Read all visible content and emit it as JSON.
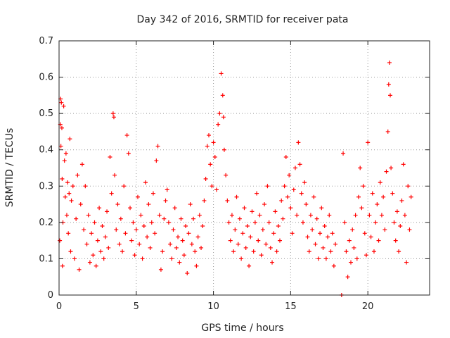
{
  "chart_data": {
    "type": "scatter",
    "title": "Day 342 of 2016, SRMTID for receiver pata",
    "xlabel": "GPS time / hours",
    "ylabel": "SRMTID / TECUs",
    "xlim": [
      0,
      24
    ],
    "ylim": [
      0,
      0.7
    ],
    "x_ticks": [
      0,
      5,
      10,
      15,
      20
    ],
    "y_ticks": [
      0,
      0.1,
      0.2,
      0.3,
      0.4,
      0.5,
      0.6,
      0.7
    ],
    "x_tick_labels": [
      "0",
      "5",
      "10",
      "15",
      "20"
    ],
    "y_tick_labels": [
      "0",
      "0.1",
      "0.2",
      "0.3",
      "0.4",
      "0.5",
      "0.6",
      "0.7"
    ],
    "grid": true,
    "marker": "plus",
    "color": "#ff0000",
    "series": [
      {
        "name": "SRMTID",
        "points": [
          [
            0.05,
            0.15
          ],
          [
            0.08,
            0.47
          ],
          [
            0.1,
            0.54
          ],
          [
            0.12,
            0.41
          ],
          [
            0.15,
            0.53
          ],
          [
            0.18,
            0.46
          ],
          [
            0.2,
            0.32
          ],
          [
            0.22,
            0.08
          ],
          [
            0.25,
            0.2
          ],
          [
            0.3,
            0.52
          ],
          [
            0.35,
            0.37
          ],
          [
            0.4,
            0.27
          ],
          [
            0.45,
            0.39
          ],
          [
            0.5,
            0.22
          ],
          [
            0.55,
            0.31
          ],
          [
            0.6,
            0.17
          ],
          [
            0.65,
            0.28
          ],
          [
            0.7,
            0.43
          ],
          [
            0.75,
            0.12
          ],
          [
            0.8,
            0.26
          ],
          [
            0.9,
            0.3
          ],
          [
            1.0,
            0.1
          ],
          [
            1.1,
            0.21
          ],
          [
            1.2,
            0.33
          ],
          [
            1.3,
            0.07
          ],
          [
            1.4,
            0.25
          ],
          [
            1.5,
            0.36
          ],
          [
            1.6,
            0.18
          ],
          [
            1.7,
            0.3
          ],
          [
            1.8,
            0.14
          ],
          [
            1.9,
            0.22
          ],
          [
            2.0,
            0.09
          ],
          [
            2.1,
            0.17
          ],
          [
            2.2,
            0.11
          ],
          [
            2.3,
            0.2
          ],
          [
            2.4,
            0.08
          ],
          [
            2.5,
            0.15
          ],
          [
            2.6,
            0.24
          ],
          [
            2.7,
            0.12
          ],
          [
            2.8,
            0.19
          ],
          [
            2.9,
            0.1
          ],
          [
            3.0,
            0.16
          ],
          [
            3.1,
            0.23
          ],
          [
            3.2,
            0.13
          ],
          [
            3.3,
            0.38
          ],
          [
            3.4,
            0.28
          ],
          [
            3.5,
            0.5
          ],
          [
            3.55,
            0.49
          ],
          [
            3.6,
            0.33
          ],
          [
            3.7,
            0.18
          ],
          [
            3.8,
            0.25
          ],
          [
            3.9,
            0.14
          ],
          [
            4.0,
            0.21
          ],
          [
            4.1,
            0.12
          ],
          [
            4.2,
            0.3
          ],
          [
            4.3,
            0.17
          ],
          [
            4.4,
            0.44
          ],
          [
            4.5,
            0.39
          ],
          [
            4.6,
            0.24
          ],
          [
            4.7,
            0.15
          ],
          [
            4.8,
            0.2
          ],
          [
            4.9,
            0.11
          ],
          [
            5.0,
            0.18
          ],
          [
            5.1,
            0.27
          ],
          [
            5.2,
            0.14
          ],
          [
            5.3,
            0.22
          ],
          [
            5.4,
            0.1
          ],
          [
            5.5,
            0.19
          ],
          [
            5.6,
            0.31
          ],
          [
            5.7,
            0.16
          ],
          [
            5.8,
            0.25
          ],
          [
            5.9,
            0.13
          ],
          [
            6.0,
            0.2
          ],
          [
            6.1,
            0.28
          ],
          [
            6.2,
            0.17
          ],
          [
            6.3,
            0.37
          ],
          [
            6.4,
            0.41
          ],
          [
            6.5,
            0.22
          ],
          [
            6.6,
            0.07
          ],
          [
            6.7,
            0.12
          ],
          [
            6.8,
            0.21
          ],
          [
            6.9,
            0.26
          ],
          [
            7.0,
            0.29
          ],
          [
            7.1,
            0.2
          ],
          [
            7.2,
            0.14
          ],
          [
            7.3,
            0.1
          ],
          [
            7.4,
            0.18
          ],
          [
            7.5,
            0.24
          ],
          [
            7.6,
            0.13
          ],
          [
            7.7,
            0.16
          ],
          [
            7.8,
            0.09
          ],
          [
            7.9,
            0.21
          ],
          [
            8.0,
            0.15
          ],
          [
            8.1,
            0.11
          ],
          [
            8.2,
            0.19
          ],
          [
            8.3,
            0.06
          ],
          [
            8.4,
            0.17
          ],
          [
            8.5,
            0.25
          ],
          [
            8.6,
            0.14
          ],
          [
            8.7,
            0.21
          ],
          [
            8.8,
            0.12
          ],
          [
            8.9,
            0.08
          ],
          [
            9.0,
            0.16
          ],
          [
            9.1,
            0.22
          ],
          [
            9.2,
            0.13
          ],
          [
            9.3,
            0.19
          ],
          [
            9.4,
            0.26
          ],
          [
            9.5,
            0.32
          ],
          [
            9.6,
            0.41
          ],
          [
            9.7,
            0.44
          ],
          [
            9.8,
            0.36
          ],
          [
            9.9,
            0.3
          ],
          [
            10.0,
            0.42
          ],
          [
            10.1,
            0.38
          ],
          [
            10.2,
            0.29
          ],
          [
            10.3,
            0.47
          ],
          [
            10.4,
            0.5
          ],
          [
            10.5,
            0.61
          ],
          [
            10.6,
            0.55
          ],
          [
            10.65,
            0.49
          ],
          [
            10.7,
            0.4
          ],
          [
            10.8,
            0.33
          ],
          [
            10.9,
            0.26
          ],
          [
            11.0,
            0.2
          ],
          [
            11.1,
            0.15
          ],
          [
            11.2,
            0.22
          ],
          [
            11.3,
            0.12
          ],
          [
            11.4,
            0.18
          ],
          [
            11.5,
            0.27
          ],
          [
            11.6,
            0.14
          ],
          [
            11.7,
            0.21
          ],
          [
            11.8,
            0.1
          ],
          [
            11.9,
            0.17
          ],
          [
            12.0,
            0.24
          ],
          [
            12.1,
            0.13
          ],
          [
            12.2,
            0.19
          ],
          [
            12.3,
            0.08
          ],
          [
            12.4,
            0.16
          ],
          [
            12.5,
            0.23
          ],
          [
            12.6,
            0.12
          ],
          [
            12.7,
            0.2
          ],
          [
            12.8,
            0.28
          ],
          [
            12.9,
            0.15
          ],
          [
            13.0,
            0.22
          ],
          [
            13.1,
            0.11
          ],
          [
            13.2,
            0.18
          ],
          [
            13.3,
            0.25
          ],
          [
            13.4,
            0.14
          ],
          [
            13.5,
            0.3
          ],
          [
            13.6,
            0.2
          ],
          [
            13.7,
            0.13
          ],
          [
            13.8,
            0.09
          ],
          [
            13.9,
            0.17
          ],
          [
            14.0,
            0.23
          ],
          [
            14.1,
            0.12
          ],
          [
            14.2,
            0.19
          ],
          [
            14.3,
            0.15
          ],
          [
            14.4,
            0.26
          ],
          [
            14.5,
            0.21
          ],
          [
            14.6,
            0.3
          ],
          [
            14.7,
            0.38
          ],
          [
            14.8,
            0.27
          ],
          [
            14.9,
            0.33
          ],
          [
            15.0,
            0.24
          ],
          [
            15.1,
            0.17
          ],
          [
            15.2,
            0.29
          ],
          [
            15.3,
            0.35
          ],
          [
            15.4,
            0.22
          ],
          [
            15.5,
            0.42
          ],
          [
            15.6,
            0.36
          ],
          [
            15.7,
            0.28
          ],
          [
            15.8,
            0.2
          ],
          [
            15.9,
            0.31
          ],
          [
            16.0,
            0.25
          ],
          [
            16.1,
            0.16
          ],
          [
            16.2,
            0.12
          ],
          [
            16.3,
            0.22
          ],
          [
            16.4,
            0.18
          ],
          [
            16.5,
            0.27
          ],
          [
            16.6,
            0.14
          ],
          [
            16.7,
            0.21
          ],
          [
            16.8,
            0.1
          ],
          [
            16.9,
            0.17
          ],
          [
            17.0,
            0.24
          ],
          [
            17.1,
            0.13
          ],
          [
            17.2,
            0.19
          ],
          [
            17.3,
            0.1
          ],
          [
            17.4,
            0.16
          ],
          [
            17.5,
            0.22
          ],
          [
            17.6,
            0.12
          ],
          [
            17.7,
            0.17
          ],
          [
            17.8,
            0.08
          ],
          [
            17.9,
            0.14
          ],
          [
            18.3,
            0.0
          ],
          [
            18.4,
            0.39
          ],
          [
            18.5,
            0.2
          ],
          [
            18.6,
            0.12
          ],
          [
            18.7,
            0.05
          ],
          [
            18.8,
            0.15
          ],
          [
            18.9,
            0.09
          ],
          [
            19.0,
            0.18
          ],
          [
            19.1,
            0.13
          ],
          [
            19.2,
            0.22
          ],
          [
            19.3,
            0.1
          ],
          [
            19.4,
            0.27
          ],
          [
            19.5,
            0.35
          ],
          [
            19.6,
            0.24
          ],
          [
            19.7,
            0.3
          ],
          [
            19.8,
            0.17
          ],
          [
            19.9,
            0.11
          ],
          [
            20.0,
            0.42
          ],
          [
            20.1,
            0.22
          ],
          [
            20.2,
            0.16
          ],
          [
            20.3,
            0.28
          ],
          [
            20.4,
            0.12
          ],
          [
            20.5,
            0.2
          ],
          [
            20.6,
            0.25
          ],
          [
            20.7,
            0.15
          ],
          [
            20.8,
            0.31
          ],
          [
            20.9,
            0.22
          ],
          [
            21.0,
            0.27
          ],
          [
            21.1,
            0.18
          ],
          [
            21.2,
            0.34
          ],
          [
            21.3,
            0.45
          ],
          [
            21.35,
            0.58
          ],
          [
            21.4,
            0.64
          ],
          [
            21.45,
            0.55
          ],
          [
            21.5,
            0.35
          ],
          [
            21.6,
            0.28
          ],
          [
            21.7,
            0.2
          ],
          [
            21.8,
            0.15
          ],
          [
            21.9,
            0.23
          ],
          [
            22.0,
            0.12
          ],
          [
            22.1,
            0.19
          ],
          [
            22.2,
            0.26
          ],
          [
            22.3,
            0.36
          ],
          [
            22.4,
            0.22
          ],
          [
            22.5,
            0.09
          ],
          [
            22.6,
            0.3
          ],
          [
            22.7,
            0.18
          ],
          [
            22.8,
            0.27
          ]
        ]
      }
    ]
  }
}
